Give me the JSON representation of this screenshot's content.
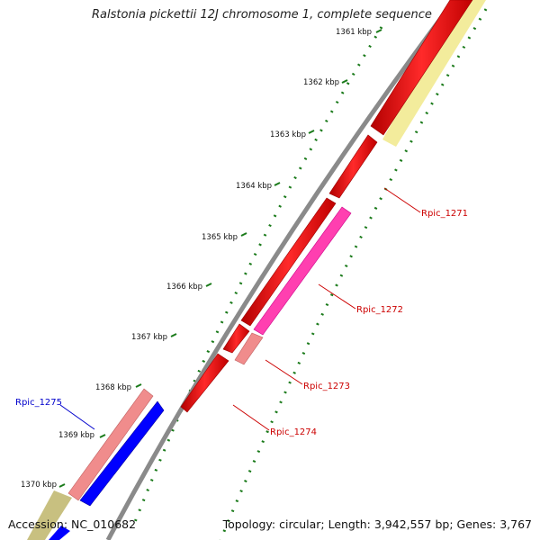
{
  "title": "Ralstonia pickettii 12J chromosome 1, complete sequence",
  "accession": "Accession: NC_010682",
  "topology": "Topology: circular; Length: 3,942,557 bp; Genes: 3,767",
  "colors": {
    "backbone": "#8a8a8a",
    "gene_red": "#ff0000",
    "gene_pink": "#ff66cc",
    "gene_salmon": "#f08080",
    "gene_blue": "#0000ff",
    "gene_yellow": "#f0e68c",
    "tick": "#1a7a1a",
    "label_red": "#cc0000",
    "label_blue": "#0000cc"
  },
  "kbp_ticks": [
    "1361 kbp",
    "1362 kbp",
    "1363 kbp",
    "1364 kbp",
    "1365 kbp",
    "1366 kbp",
    "1367 kbp",
    "1368 kbp",
    "1369 kbp",
    "1370 kbp"
  ],
  "genes": [
    {
      "name": "Rpic_1271",
      "color": "label_red"
    },
    {
      "name": "Rpic_1272",
      "color": "label_red"
    },
    {
      "name": "Rpic_1273",
      "color": "label_red"
    },
    {
      "name": "Rpic_1274",
      "color": "label_red"
    },
    {
      "name": "Rpic_1275",
      "color": "label_blue"
    }
  ]
}
